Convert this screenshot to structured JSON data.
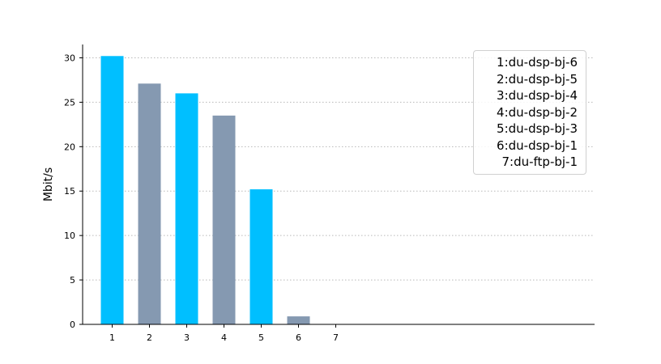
{
  "chart_data": {
    "type": "bar",
    "title": "",
    "xlabel": "",
    "ylabel": "Mbit/s",
    "categories": [
      "1",
      "2",
      "3",
      "4",
      "5",
      "6",
      "7"
    ],
    "values": [
      30.2,
      27.1,
      26.0,
      23.5,
      15.2,
      0.9,
      0
    ],
    "bar_colors": [
      "#00bfff",
      "#8599b1",
      "#00bfff",
      "#8599b1",
      "#00bfff",
      "#8599b1",
      "#00bfff"
    ],
    "ylim": [
      0,
      31.5
    ],
    "yticks": [
      "0",
      "5",
      "10",
      "15",
      "20",
      "25",
      "30"
    ],
    "grid": "horizontal-dotted",
    "legend_position": "top-right",
    "legend": [
      "1:du-dsp-bj-6",
      "2:du-dsp-bj-5",
      "3:du-dsp-bj-4",
      "4:du-dsp-bj-2",
      "5:du-dsp-bj-3",
      "6:du-dsp-bj-1",
      "7:du-ftp-bj-1"
    ]
  }
}
